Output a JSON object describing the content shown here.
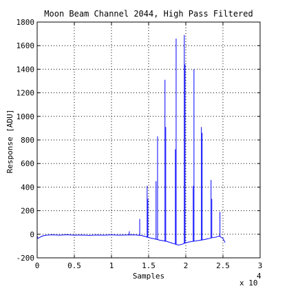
{
  "chart_data": {
    "type": "line",
    "title": "Moon Beam Channel 2044, High Pass Filtered",
    "xlabel": "Samples",
    "ylabel": "Response [ADU]",
    "x_multiplier_label": "x 10",
    "x_multiplier_exponent": "4",
    "xlim": [
      0,
      3
    ],
    "ylim": [
      -200,
      1800
    ],
    "x_ticks": [
      0,
      0.5,
      1,
      1.5,
      2,
      2.5,
      3
    ],
    "x_tick_labels": [
      "0",
      "0.5",
      "1",
      "1.5",
      "2",
      "2.5",
      "3"
    ],
    "y_ticks": [
      -200,
      0,
      200,
      400,
      600,
      800,
      1000,
      1200,
      1400,
      1600,
      1800
    ],
    "y_tick_labels": [
      "-200",
      "0",
      "200",
      "400",
      "600",
      "800",
      "1000",
      "1200",
      "1400",
      "1600",
      "1800"
    ],
    "grid": "dotted",
    "series": [
      {
        "color": "#0000ff",
        "baseline_x": [
          0,
          0.01,
          0.03,
          0.07,
          0.12,
          0.2,
          0.3,
          0.4,
          0.5,
          0.6,
          0.7,
          0.8,
          0.9,
          1.0,
          1.1,
          1.2,
          1.3,
          1.36,
          1.4,
          1.45,
          1.5,
          1.55,
          1.6,
          1.65,
          1.7,
          1.75,
          1.8,
          1.85,
          1.9,
          1.95,
          2.0,
          2.05,
          2.1,
          2.15,
          2.2,
          2.25,
          2.3,
          2.35,
          2.4,
          2.45,
          2.5,
          2.52,
          2.53
        ],
        "baseline_y": [
          -15,
          -35,
          -28,
          -15,
          -8,
          -5,
          -8,
          -4,
          -8,
          -6,
          -9,
          -6,
          -8,
          -5,
          -8,
          -6,
          -5,
          -8,
          -10,
          -18,
          -28,
          -35,
          -42,
          -50,
          -55,
          -62,
          -72,
          -82,
          -92,
          -85,
          -72,
          -65,
          -60,
          -55,
          -50,
          -45,
          -38,
          -30,
          -25,
          -15,
          -35,
          -60,
          -70
        ],
        "spikes": [
          {
            "x": 1.24,
            "y": 25
          },
          {
            "x": 1.38,
            "y": 130
          },
          {
            "x": 1.48,
            "y": 410
          },
          {
            "x": 1.49,
            "y": 300
          },
          {
            "x": 1.6,
            "y": 450
          },
          {
            "x": 1.62,
            "y": 830
          },
          {
            "x": 1.72,
            "y": 1310
          },
          {
            "x": 1.73,
            "y": 910
          },
          {
            "x": 1.86,
            "y": 720
          },
          {
            "x": 1.87,
            "y": 1660
          },
          {
            "x": 1.98,
            "y": 1690
          },
          {
            "x": 1.99,
            "y": 1440
          },
          {
            "x": 2.1,
            "y": 410
          },
          {
            "x": 2.11,
            "y": 1400
          },
          {
            "x": 2.21,
            "y": 910
          },
          {
            "x": 2.22,
            "y": 860
          },
          {
            "x": 2.34,
            "y": 460
          },
          {
            "x": 2.35,
            "y": 300
          },
          {
            "x": 2.46,
            "y": 190
          }
        ]
      }
    ]
  }
}
